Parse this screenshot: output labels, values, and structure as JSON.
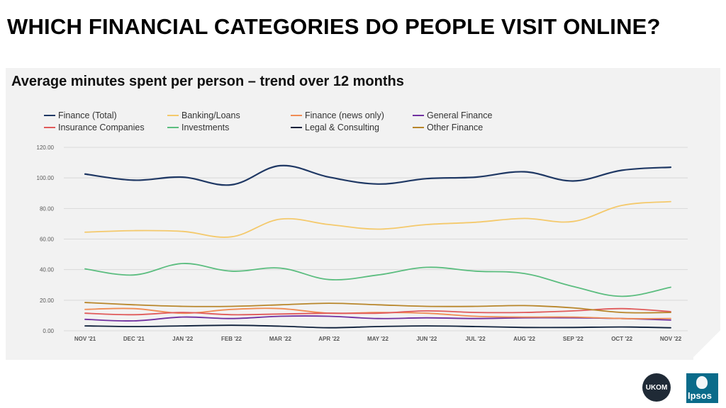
{
  "page_title": "WHICH FINANCIAL CATEGORIES DO PEOPLE VISIT ONLINE?",
  "chart_title": "Average minutes spent per person – trend over 12 months",
  "logos": {
    "ukom": "UKOM",
    "ipsos": "Ipsos"
  },
  "chart_data": {
    "type": "line",
    "title": "Average minutes spent per person – trend over 12 months",
    "xlabel": "",
    "ylabel": "",
    "categories": [
      "NOV '21",
      "DEC '21",
      "JAN '22",
      "FEB '22",
      "MAR '22",
      "APR '22",
      "MAY '22",
      "JUN '22",
      "JUL '22",
      "AUG '22",
      "SEP '22",
      "OCT '22",
      "NOV '22"
    ],
    "yticks": [
      "0.00",
      "20.00",
      "40.00",
      "60.00",
      "80.00",
      "100.00",
      "120.00"
    ],
    "ylim": [
      0,
      120
    ],
    "grid": true,
    "legend_position": "top",
    "series": [
      {
        "name": "Finance (Total)",
        "color": "#1f3864",
        "values": [
          102.5,
          98.5,
          100.5,
          95.5,
          108,
          100.5,
          96,
          99.5,
          100.5,
          104,
          98,
          105,
          107
        ]
      },
      {
        "name": "Banking/Loans",
        "color": "#f4c96b",
        "values": [
          64.5,
          65.5,
          65,
          61.5,
          73,
          69.5,
          66.5,
          69.5,
          71,
          73.5,
          71.5,
          82,
          84.5
        ]
      },
      {
        "name": "Finance (news only)",
        "color": "#f08c54",
        "values": [
          14,
          14.5,
          11.5,
          14,
          14.5,
          11.5,
          12,
          11.5,
          9.5,
          9,
          9,
          8,
          8
        ]
      },
      {
        "name": "General Finance",
        "color": "#7030a0",
        "values": [
          7.5,
          6.5,
          9,
          8,
          9.5,
          9.5,
          8,
          8.5,
          8,
          8.5,
          8.5,
          8,
          7
        ]
      },
      {
        "name": "Insurance Companies",
        "color": "#e05a5a",
        "values": [
          11.5,
          10.5,
          12,
          10.5,
          11,
          11.5,
          11.5,
          13,
          12,
          12,
          13,
          14.5,
          12.5
        ]
      },
      {
        "name": "Investments",
        "color": "#5bbd7f",
        "values": [
          40.5,
          36.5,
          44,
          39,
          41,
          33.5,
          36.5,
          41.5,
          39,
          37.5,
          29,
          22.5,
          28.5
        ]
      },
      {
        "name": "Legal & Consulting",
        "color": "#0d1f3a",
        "values": [
          3.2,
          2.8,
          3.2,
          3.6,
          3,
          2,
          2.8,
          3.2,
          2.8,
          2.2,
          2.2,
          2.5,
          2
        ]
      },
      {
        "name": "Other Finance",
        "color": "#b8862a",
        "values": [
          18.5,
          17,
          16,
          16,
          17,
          18,
          17,
          16,
          16,
          16.5,
          15,
          12,
          12
        ]
      }
    ]
  }
}
